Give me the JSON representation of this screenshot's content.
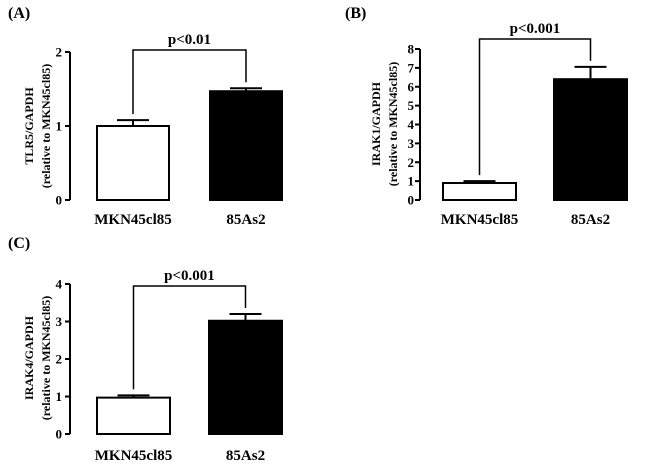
{
  "chart_data": [
    {
      "panel_label": "(A)",
      "type": "bar",
      "categories": [
        "MKN45cl85",
        "85As2"
      ],
      "values": [
        1.0,
        1.47
      ],
      "errors": [
        0.08,
        0.04
      ],
      "bar_colors": [
        "#ffffff",
        "#000000"
      ],
      "ylabel_line1": "TLR5/GAPDH",
      "ylabel_line2": "(relative to  MKN45cl85)",
      "ylim": [
        0,
        2
      ],
      "yticks": [
        0,
        1,
        2
      ],
      "significance": "p<0.01"
    },
    {
      "panel_label": "(B)",
      "type": "bar",
      "categories": [
        "MKN45cl85",
        "85As2"
      ],
      "values": [
        0.9,
        6.4
      ],
      "errors": [
        0.1,
        0.65
      ],
      "bar_colors": [
        "#ffffff",
        "#000000"
      ],
      "ylabel_line1": "IRAK1/GAPDH",
      "ylabel_line2": "(relative to MKN45cl85)",
      "ylim": [
        0,
        8
      ],
      "yticks": [
        0,
        1,
        2,
        3,
        4,
        5,
        6,
        7,
        8
      ],
      "significance": "p<0.001"
    },
    {
      "panel_label": "(C)",
      "type": "bar",
      "categories": [
        "MKN45cl85",
        "85As2"
      ],
      "values": [
        0.97,
        3.02
      ],
      "errors": [
        0.06,
        0.18
      ],
      "bar_colors": [
        "#ffffff",
        "#000000"
      ],
      "ylabel_line1": "IRAK4/GAPDH",
      "ylabel_line2": "(relative to  MKN45cl85)",
      "ylim": [
        0,
        4
      ],
      "yticks": [
        0,
        1,
        2,
        3,
        4
      ],
      "significance": "p<0.001"
    }
  ]
}
